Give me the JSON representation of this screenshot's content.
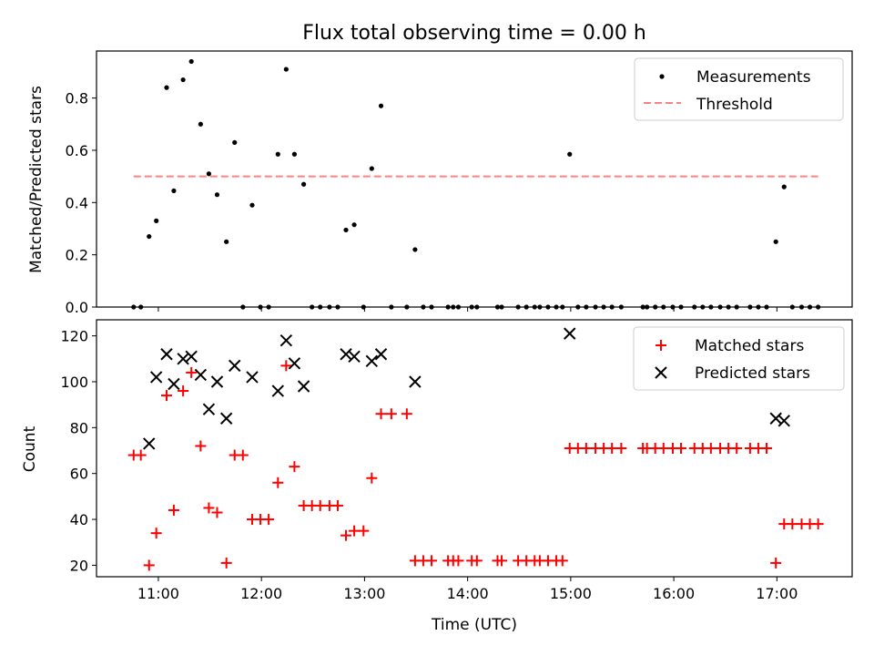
{
  "title": "Flux total observing time = 0.00 h",
  "colors": {
    "measure": "#000000",
    "threshold": "#ff8080",
    "matched": "#ff0000",
    "predicted": "#000000",
    "axis": "#000000"
  },
  "x_axis": {
    "label": "Time (UTC)",
    "ticks": [
      11,
      12,
      13,
      14,
      15,
      16,
      17
    ],
    "tick_labels": [
      "11:00",
      "12:00",
      "13:00",
      "14:00",
      "15:00",
      "16:00",
      "17:00"
    ],
    "xlim": [
      10.4,
      17.73
    ]
  },
  "chart_data": [
    {
      "type": "scatter",
      "panel": "top",
      "ylabel": "Matched/Predicted stars",
      "ylim": [
        0.0,
        0.98
      ],
      "yticks": [
        0.0,
        0.2,
        0.4,
        0.6,
        0.8
      ],
      "ytick_labels": [
        "0.0",
        "0.2",
        "0.4",
        "0.6",
        "0.8"
      ],
      "legend": {
        "position": "top-right"
      },
      "series": [
        {
          "name": "Measurements",
          "marker": "dot",
          "points": [
            [
              10.76,
              0.0
            ],
            [
              10.83,
              0.0
            ],
            [
              10.91,
              0.27
            ],
            [
              10.98,
              0.33
            ],
            [
              11.08,
              0.84
            ],
            [
              11.15,
              0.445
            ],
            [
              11.24,
              0.87
            ],
            [
              11.32,
              0.94
            ],
            [
              11.41,
              0.7
            ],
            [
              11.49,
              0.51
            ],
            [
              11.57,
              0.43
            ],
            [
              11.66,
              0.25
            ],
            [
              11.74,
              0.63
            ],
            [
              11.82,
              0.0
            ],
            [
              11.91,
              0.39
            ],
            [
              11.99,
              0.0
            ],
            [
              12.07,
              0.0
            ],
            [
              12.16,
              0.585
            ],
            [
              12.24,
              0.91
            ],
            [
              12.32,
              0.585
            ],
            [
              12.41,
              0.47
            ],
            [
              12.49,
              0.0
            ],
            [
              12.57,
              0.0
            ],
            [
              12.66,
              0.0
            ],
            [
              12.74,
              0.0
            ],
            [
              12.82,
              0.295
            ],
            [
              12.9,
              0.315
            ],
            [
              12.99,
              0.0
            ],
            [
              13.07,
              0.53
            ],
            [
              13.16,
              0.77
            ],
            [
              13.26,
              0.0
            ],
            [
              13.41,
              0.0
            ],
            [
              13.49,
              0.22
            ],
            [
              13.57,
              0.0
            ],
            [
              13.65,
              0.0
            ],
            [
              13.81,
              0.0
            ],
            [
              13.86,
              0.0
            ],
            [
              13.91,
              0.0
            ],
            [
              14.04,
              0.0
            ],
            [
              14.09,
              0.0
            ],
            [
              14.29,
              0.0
            ],
            [
              14.33,
              0.0
            ],
            [
              14.49,
              0.0
            ],
            [
              14.57,
              0.0
            ],
            [
              14.65,
              0.0
            ],
            [
              14.7,
              0.0
            ],
            [
              14.78,
              0.0
            ],
            [
              14.86,
              0.0
            ],
            [
              14.92,
              0.0
            ],
            [
              14.99,
              0.585
            ],
            [
              15.07,
              0.0
            ],
            [
              15.15,
              0.0
            ],
            [
              15.24,
              0.0
            ],
            [
              15.32,
              0.0
            ],
            [
              15.4,
              0.0
            ],
            [
              15.49,
              0.0
            ],
            [
              15.7,
              0.0
            ],
            [
              15.74,
              0.0
            ],
            [
              15.82,
              0.0
            ],
            [
              15.9,
              0.0
            ],
            [
              15.99,
              0.0
            ],
            [
              16.07,
              0.0
            ],
            [
              16.2,
              0.0
            ],
            [
              16.28,
              0.0
            ],
            [
              16.36,
              0.0
            ],
            [
              16.45,
              0.0
            ],
            [
              16.53,
              0.0
            ],
            [
              16.61,
              0.0
            ],
            [
              16.74,
              0.0
            ],
            [
              16.82,
              0.0
            ],
            [
              16.9,
              0.0
            ],
            [
              16.99,
              0.25
            ],
            [
              17.07,
              0.46
            ],
            [
              17.15,
              0.0
            ],
            [
              17.24,
              0.0
            ],
            [
              17.32,
              0.0
            ],
            [
              17.4,
              0.0
            ]
          ]
        },
        {
          "name": "Threshold",
          "marker": "dashed-line",
          "x": [
            10.76,
            17.4
          ],
          "y": [
            0.5,
            0.5
          ]
        }
      ]
    },
    {
      "type": "scatter",
      "panel": "bottom",
      "ylabel": "Count",
      "ylim": [
        15,
        127
      ],
      "yticks": [
        20,
        40,
        60,
        80,
        100,
        120
      ],
      "ytick_labels": [
        "20",
        "40",
        "60",
        "80",
        "100",
        "120"
      ],
      "legend": {
        "position": "top-right"
      },
      "series": [
        {
          "name": "Matched stars",
          "marker": "plus",
          "points": [
            [
              10.76,
              68
            ],
            [
              10.83,
              68
            ],
            [
              10.91,
              20
            ],
            [
              10.98,
              34
            ],
            [
              11.08,
              94
            ],
            [
              11.15,
              44
            ],
            [
              11.24,
              96
            ],
            [
              11.32,
              104
            ],
            [
              11.41,
              72
            ],
            [
              11.49,
              45
            ],
            [
              11.57,
              43
            ],
            [
              11.66,
              21
            ],
            [
              11.74,
              68
            ],
            [
              11.82,
              68
            ],
            [
              11.91,
              40
            ],
            [
              11.99,
              40
            ],
            [
              12.07,
              40
            ],
            [
              12.16,
              56
            ],
            [
              12.24,
              107
            ],
            [
              12.32,
              63
            ],
            [
              12.41,
              46
            ],
            [
              12.49,
              46
            ],
            [
              12.57,
              46
            ],
            [
              12.66,
              46
            ],
            [
              12.74,
              46
            ],
            [
              12.82,
              33
            ],
            [
              12.9,
              35
            ],
            [
              12.99,
              35
            ],
            [
              13.07,
              58
            ],
            [
              13.16,
              86
            ],
            [
              13.26,
              86
            ],
            [
              13.41,
              86
            ],
            [
              13.49,
              22
            ],
            [
              13.57,
              22
            ],
            [
              13.65,
              22
            ],
            [
              13.81,
              22
            ],
            [
              13.86,
              22
            ],
            [
              13.91,
              22
            ],
            [
              14.04,
              22
            ],
            [
              14.09,
              22
            ],
            [
              14.29,
              22
            ],
            [
              14.33,
              22
            ],
            [
              14.49,
              22
            ],
            [
              14.57,
              22
            ],
            [
              14.65,
              22
            ],
            [
              14.7,
              22
            ],
            [
              14.78,
              22
            ],
            [
              14.86,
              22
            ],
            [
              14.92,
              22
            ],
            [
              14.99,
              71
            ],
            [
              15.07,
              71
            ],
            [
              15.15,
              71
            ],
            [
              15.24,
              71
            ],
            [
              15.32,
              71
            ],
            [
              15.4,
              71
            ],
            [
              15.49,
              71
            ],
            [
              15.7,
              71
            ],
            [
              15.74,
              71
            ],
            [
              15.82,
              71
            ],
            [
              15.9,
              71
            ],
            [
              15.99,
              71
            ],
            [
              16.07,
              71
            ],
            [
              16.2,
              71
            ],
            [
              16.28,
              71
            ],
            [
              16.36,
              71
            ],
            [
              16.45,
              71
            ],
            [
              16.53,
              71
            ],
            [
              16.61,
              71
            ],
            [
              16.74,
              71
            ],
            [
              16.82,
              71
            ],
            [
              16.9,
              71
            ],
            [
              16.99,
              21
            ],
            [
              17.07,
              38
            ],
            [
              17.15,
              38
            ],
            [
              17.24,
              38
            ],
            [
              17.32,
              38
            ],
            [
              17.4,
              38
            ]
          ]
        },
        {
          "name": "Predicted stars",
          "marker": "x",
          "points": [
            [
              10.91,
              73
            ],
            [
              10.98,
              102
            ],
            [
              11.08,
              112
            ],
            [
              11.15,
              99
            ],
            [
              11.24,
              110
            ],
            [
              11.32,
              111
            ],
            [
              11.41,
              103
            ],
            [
              11.49,
              88
            ],
            [
              11.57,
              100
            ],
            [
              11.66,
              84
            ],
            [
              11.74,
              107
            ],
            [
              11.91,
              102
            ],
            [
              12.16,
              96
            ],
            [
              12.24,
              118
            ],
            [
              12.32,
              108
            ],
            [
              12.41,
              98
            ],
            [
              12.82,
              112
            ],
            [
              12.9,
              111
            ],
            [
              13.07,
              109
            ],
            [
              13.16,
              112
            ],
            [
              13.49,
              100
            ],
            [
              14.99,
              121
            ],
            [
              16.99,
              84
            ],
            [
              17.07,
              83
            ]
          ]
        }
      ]
    }
  ]
}
